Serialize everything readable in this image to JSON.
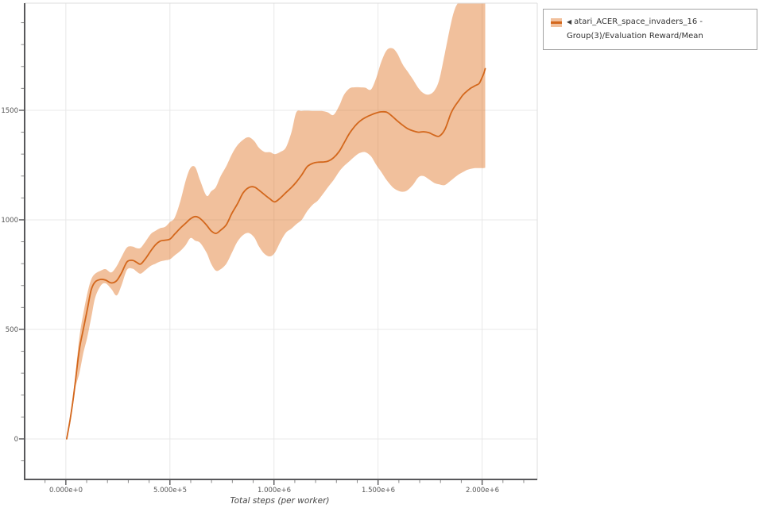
{
  "legend": {
    "collapse_icon": "◀",
    "label": "atari_ACER_space_invaders_16 - Group(3)/Evaluation Reward/Mean"
  },
  "chart_data": {
    "type": "line",
    "title": "",
    "xlabel": "Total steps (per worker)",
    "ylabel": "",
    "grid": true,
    "legend_position": "top-right",
    "grid_color": "#e8e8e8",
    "xlim": [
      -198000,
      2265000
    ],
    "ylim": [
      -185,
      1989
    ],
    "x_minor_step": 100000,
    "y_minor_step": 100,
    "x_ticks": [
      0,
      500000,
      1000000,
      1500000,
      2000000
    ],
    "x_tick_labels": [
      "0.000e+0",
      "5.000e+5",
      "1.000e+6",
      "1.500e+6",
      "2.000e+6"
    ],
    "y_ticks": [
      0,
      500,
      1000,
      1500
    ],
    "y_tick_labels": [
      "0",
      "500",
      "1000",
      "1500"
    ],
    "series": [
      {
        "name": "atari_ACER_space_invaders_16 - Group(3)/Evaluation Reward/Mean",
        "color": "#d3671c",
        "band_color": "rgba(223,115,35,0.45)",
        "points_format": [
          "steps",
          "mean",
          "band_lower",
          "band_upper"
        ],
        "points": [
          [
            4000,
            0,
            0,
            0
          ],
          [
            20000,
            85,
            68,
            100
          ],
          [
            35000,
            180,
            158,
            205
          ],
          [
            46000,
            264,
            235,
            292
          ],
          [
            65000,
            409,
            300,
            464
          ],
          [
            84000,
            500,
            391,
            572
          ],
          [
            103000,
            590,
            464,
            663
          ],
          [
            122000,
            681,
            554,
            728
          ],
          [
            141000,
            717,
            645,
            754
          ],
          [
            168000,
            728,
            700,
            768
          ],
          [
            191000,
            725,
            710,
            775
          ],
          [
            218000,
            712,
            685,
            760
          ],
          [
            244000,
            722,
            655,
            788
          ],
          [
            267000,
            757,
            700,
            830
          ],
          [
            294000,
            808,
            772,
            874
          ],
          [
            321000,
            815,
            777,
            878
          ],
          [
            340000,
            806,
            764,
            871
          ],
          [
            359000,
            798,
            754,
            872
          ],
          [
            382000,
            822,
            770,
            900
          ],
          [
            408000,
            858,
            790,
            935
          ],
          [
            431000,
            886,
            800,
            950
          ],
          [
            454000,
            903,
            810,
            962
          ],
          [
            477000,
            907,
            815,
            968
          ],
          [
            500000,
            912,
            820,
            990
          ],
          [
            523000,
            935,
            838,
            1010
          ],
          [
            550000,
            962,
            858,
            1085
          ],
          [
            576000,
            985,
            885,
            1180
          ],
          [
            599000,
            1005,
            917,
            1237
          ],
          [
            622000,
            1015,
            905,
            1240
          ],
          [
            645000,
            1006,
            895,
            1180
          ],
          [
            676000,
            976,
            850,
            1110
          ],
          [
            698000,
            950,
            800,
            1130
          ],
          [
            721000,
            938,
            768,
            1150
          ],
          [
            744000,
            953,
            775,
            1200
          ],
          [
            771000,
            978,
            800,
            1245
          ],
          [
            798000,
            1030,
            850,
            1300
          ],
          [
            824000,
            1072,
            900,
            1340
          ],
          [
            851000,
            1122,
            930,
            1365
          ],
          [
            878000,
            1147,
            940,
            1377
          ],
          [
            905000,
            1150,
            920,
            1360
          ],
          [
            927000,
            1136,
            880,
            1330
          ],
          [
            954000,
            1115,
            845,
            1310
          ],
          [
            981000,
            1095,
            833,
            1309
          ],
          [
            1004000,
            1082,
            850,
            1300
          ],
          [
            1031000,
            1100,
            900,
            1310
          ],
          [
            1057000,
            1124,
            941,
            1330
          ],
          [
            1084000,
            1148,
            960,
            1400
          ],
          [
            1107000,
            1172,
            980,
            1490
          ],
          [
            1133000,
            1205,
            1000,
            1497
          ],
          [
            1160000,
            1243,
            1040,
            1498
          ],
          [
            1187000,
            1258,
            1070,
            1497
          ],
          [
            1210000,
            1263,
            1087,
            1497
          ],
          [
            1237000,
            1264,
            1120,
            1496
          ],
          [
            1260000,
            1268,
            1150,
            1490
          ],
          [
            1286000,
            1283,
            1181,
            1479
          ],
          [
            1313000,
            1312,
            1220,
            1520
          ],
          [
            1336000,
            1350,
            1245,
            1570
          ],
          [
            1363000,
            1395,
            1268,
            1600
          ],
          [
            1389000,
            1428,
            1290,
            1605
          ],
          [
            1412000,
            1450,
            1305,
            1605
          ],
          [
            1439000,
            1467,
            1309,
            1603
          ],
          [
            1466000,
            1479,
            1290,
            1595
          ],
          [
            1492000,
            1488,
            1250,
            1650
          ],
          [
            1515000,
            1493,
            1219,
            1720
          ],
          [
            1542000,
            1491,
            1180,
            1775
          ],
          [
            1569000,
            1472,
            1150,
            1783
          ],
          [
            1592000,
            1452,
            1135,
            1760
          ],
          [
            1618000,
            1432,
            1128,
            1710
          ],
          [
            1641000,
            1417,
            1135,
            1678
          ],
          [
            1668000,
            1406,
            1160,
            1640
          ],
          [
            1695000,
            1400,
            1195,
            1600
          ],
          [
            1718000,
            1402,
            1200,
            1578
          ],
          [
            1744000,
            1398,
            1185,
            1572
          ],
          [
            1771000,
            1386,
            1168,
            1590
          ],
          [
            1794000,
            1382,
            1162,
            1640
          ],
          [
            1821000,
            1412,
            1159,
            1760
          ],
          [
            1851000,
            1488,
            1180,
            1900
          ],
          [
            1870000,
            1520,
            1195,
            1965
          ],
          [
            1889000,
            1545,
            1208,
            2000
          ],
          [
            1908000,
            1570,
            1218,
            2050
          ],
          [
            1928000,
            1588,
            1228,
            2080
          ],
          [
            1947000,
            1602,
            1233,
            2090
          ],
          [
            1966000,
            1612,
            1236,
            2090
          ],
          [
            1985000,
            1622,
            1236,
            2085
          ],
          [
            1996000,
            1642,
            1236,
            2075
          ],
          [
            2008000,
            1668,
            1236,
            2060
          ],
          [
            2015000,
            1690,
            1238,
            2050
          ]
        ]
      }
    ]
  }
}
